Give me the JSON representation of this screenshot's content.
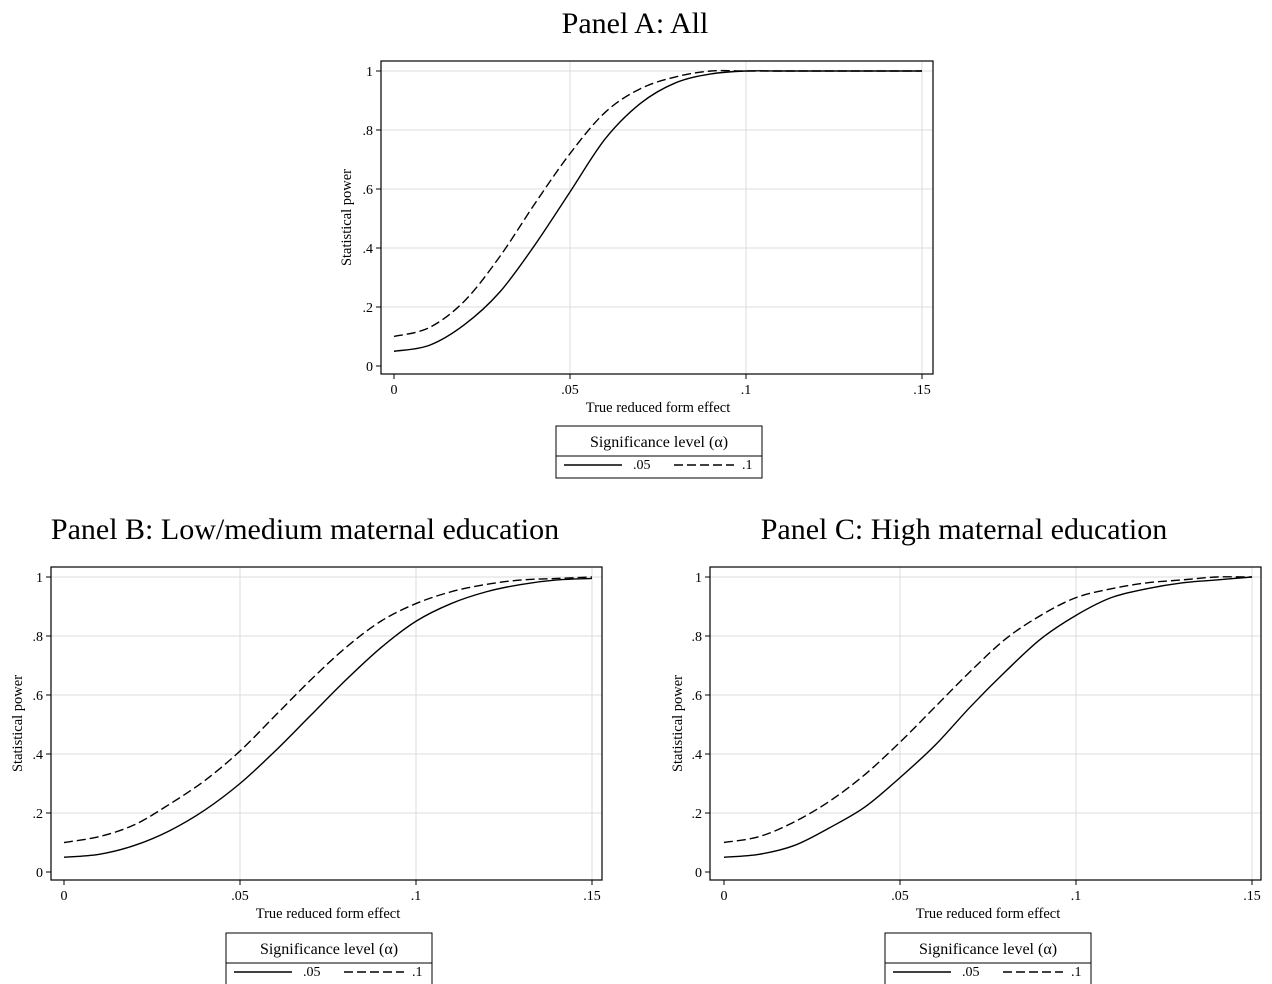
{
  "chart_data": [
    {
      "type": "line",
      "title": "Panel A: All",
      "xlabel": "True reduced form effect",
      "ylabel": "Statistical power",
      "xlim": [
        0,
        0.15
      ],
      "ylim": [
        0,
        1
      ],
      "xticks": [
        0,
        0.05,
        0.1,
        0.15
      ],
      "xtick_labels": [
        "0",
        ".05",
        ".1",
        ".15"
      ],
      "yticks": [
        0,
        0.2,
        0.4,
        0.6,
        0.8,
        1
      ],
      "ytick_labels": [
        "0",
        ".2",
        ".4",
        ".6",
        ".8",
        "1"
      ],
      "grid": true,
      "legend": {
        "title": "Significance level (α)",
        "position": "bottom"
      },
      "series": [
        {
          "name": ".05",
          "style": "solid",
          "x": [
            0,
            0.01,
            0.02,
            0.03,
            0.04,
            0.05,
            0.06,
            0.07,
            0.08,
            0.09,
            0.1,
            0.11,
            0.12,
            0.13,
            0.14,
            0.15
          ],
          "y": [
            0.05,
            0.07,
            0.14,
            0.25,
            0.41,
            0.59,
            0.77,
            0.89,
            0.96,
            0.99,
            1,
            1,
            1,
            1,
            1,
            1
          ]
        },
        {
          "name": ".1",
          "style": "dashed",
          "x": [
            0,
            0.01,
            0.02,
            0.03,
            0.04,
            0.05,
            0.06,
            0.07,
            0.08,
            0.09,
            0.1,
            0.11,
            0.12,
            0.13,
            0.14,
            0.15
          ],
          "y": [
            0.1,
            0.13,
            0.22,
            0.37,
            0.55,
            0.72,
            0.86,
            0.94,
            0.98,
            1,
            1,
            1,
            1,
            1,
            1,
            1
          ]
        }
      ]
    },
    {
      "type": "line",
      "title": "Panel B: Low/medium maternal education",
      "xlabel": "True reduced form effect",
      "ylabel": "Statistical power",
      "xlim": [
        0,
        0.15
      ],
      "ylim": [
        0,
        1
      ],
      "xticks": [
        0,
        0.05,
        0.1,
        0.15
      ],
      "xtick_labels": [
        "0",
        ".05",
        ".1",
        ".15"
      ],
      "yticks": [
        0,
        0.2,
        0.4,
        0.6,
        0.8,
        1
      ],
      "ytick_labels": [
        "0",
        ".2",
        ".4",
        ".6",
        ".8",
        "1"
      ],
      "grid": true,
      "legend": {
        "title": "Significance level (α)",
        "position": "bottom"
      },
      "series": [
        {
          "name": ".05",
          "style": "solid",
          "x": [
            0,
            0.01,
            0.02,
            0.03,
            0.04,
            0.05,
            0.06,
            0.07,
            0.08,
            0.09,
            0.1,
            0.11,
            0.12,
            0.13,
            0.14,
            0.15
          ],
          "y": [
            0.05,
            0.06,
            0.09,
            0.14,
            0.21,
            0.3,
            0.41,
            0.53,
            0.65,
            0.76,
            0.85,
            0.91,
            0.95,
            0.975,
            0.99,
            0.995
          ]
        },
        {
          "name": ".1",
          "style": "dashed",
          "x": [
            0,
            0.01,
            0.02,
            0.03,
            0.04,
            0.05,
            0.06,
            0.07,
            0.08,
            0.09,
            0.1,
            0.11,
            0.12,
            0.13,
            0.14,
            0.15
          ],
          "y": [
            0.1,
            0.12,
            0.16,
            0.23,
            0.31,
            0.41,
            0.53,
            0.65,
            0.76,
            0.85,
            0.91,
            0.95,
            0.975,
            0.99,
            0.995,
            1
          ]
        }
      ]
    },
    {
      "type": "line",
      "title": "Panel C: High maternal education",
      "xlabel": "True reduced form effect",
      "ylabel": "Statistical power",
      "xlim": [
        0,
        0.15
      ],
      "ylim": [
        0,
        1
      ],
      "xticks": [
        0,
        0.05,
        0.1,
        0.15
      ],
      "xtick_labels": [
        "0",
        ".05",
        ".1",
        ".15"
      ],
      "yticks": [
        0,
        0.2,
        0.4,
        0.6,
        0.8,
        1
      ],
      "ytick_labels": [
        "0",
        ".2",
        ".4",
        ".6",
        ".8",
        "1"
      ],
      "grid": true,
      "legend": {
        "title": "Significance level (α)",
        "position": "bottom"
      },
      "series": [
        {
          "name": ".05",
          "style": "solid",
          "x": [
            0,
            0.01,
            0.02,
            0.03,
            0.04,
            0.05,
            0.06,
            0.07,
            0.08,
            0.09,
            0.1,
            0.11,
            0.12,
            0.13,
            0.14,
            0.15
          ],
          "y": [
            0.05,
            0.06,
            0.09,
            0.15,
            0.22,
            0.32,
            0.43,
            0.56,
            0.68,
            0.79,
            0.87,
            0.93,
            0.96,
            0.98,
            0.99,
            1
          ]
        },
        {
          "name": ".1",
          "style": "dashed",
          "x": [
            0,
            0.01,
            0.02,
            0.03,
            0.04,
            0.05,
            0.06,
            0.07,
            0.08,
            0.09,
            0.1,
            0.11,
            0.12,
            0.13,
            0.14,
            0.15
          ],
          "y": [
            0.1,
            0.12,
            0.17,
            0.24,
            0.33,
            0.44,
            0.56,
            0.68,
            0.79,
            0.87,
            0.93,
            0.96,
            0.98,
            0.99,
            1,
            1
          ]
        }
      ]
    }
  ]
}
